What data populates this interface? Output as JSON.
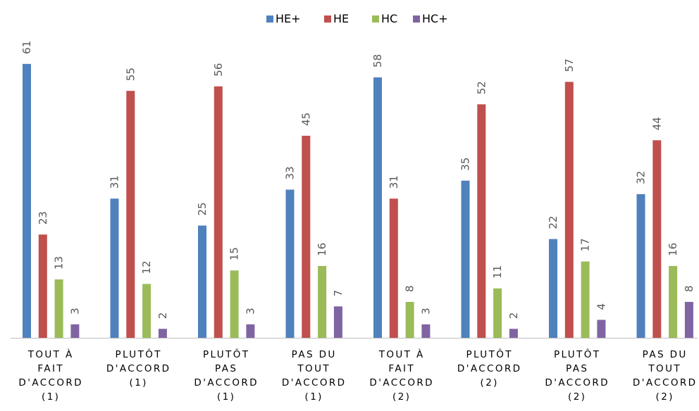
{
  "chart_data": {
    "type": "bar",
    "title": "",
    "xlabel": "",
    "ylabel": "",
    "ylim": [
      0,
      61
    ],
    "grid": false,
    "legend_position": "top",
    "categories": [
      [
        "TOUT À",
        "FAIT",
        "D'ACCORD",
        "(1)"
      ],
      [
        "PLUTÔT",
        "D'ACCORD",
        "(1)"
      ],
      [
        "PLUTÔT",
        "PAS",
        "D'ACCORD",
        "(1)"
      ],
      [
        "PAS DU",
        "TOUT",
        "D'ACCORD",
        "(1)"
      ],
      [
        "TOUT À",
        "FAIT",
        "D'ACCORD",
        "(2)"
      ],
      [
        "PLUTÔT",
        "D'ACCORD",
        "(2)"
      ],
      [
        "PLUTÔT",
        "PAS",
        "D'ACCORD",
        "(2)"
      ],
      [
        "PAS DU",
        "TOUT",
        "D'ACCORD",
        "(2)"
      ]
    ],
    "series": [
      {
        "name": "HE+",
        "color": "#4F81BD",
        "values": [
          61,
          31,
          25,
          33,
          58,
          35,
          22,
          32
        ]
      },
      {
        "name": "HE",
        "color": "#C0504D",
        "values": [
          23,
          55,
          56,
          45,
          31,
          52,
          57,
          44
        ]
      },
      {
        "name": "HC",
        "color": "#9BBB59",
        "values": [
          13,
          12,
          15,
          16,
          8,
          11,
          17,
          16
        ]
      },
      {
        "name": "HC+",
        "color": "#8064A2",
        "values": [
          3,
          2,
          3,
          7,
          3,
          2,
          4,
          8
        ]
      }
    ],
    "axis_color": "#BFBFBF",
    "label_color": "#595959"
  }
}
